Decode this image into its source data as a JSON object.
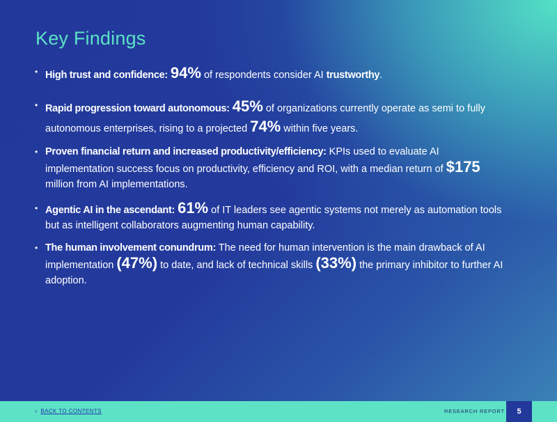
{
  "title": "Key Findings",
  "findings": [
    {
      "lead": "High trust and confidence:",
      "stat1": "94%",
      "text1": "of respondents consider AI",
      "strong": "trustworthy",
      "end": "."
    },
    {
      "lead": "Rapid progression toward autonomous:",
      "stat1": "45%",
      "text1": "of organizations currently operate as semi to fully autonomous enterprises, rising to a projected",
      "stat2": "74%",
      "text2": "within five years."
    },
    {
      "lead": "Proven financial return and increased productivity/efficiency:",
      "text1": "KPIs used to evaluate AI implementation success focus on productivity, efficiency and ROI, with a median return of",
      "stat1": "$175",
      "text2": "million from AI implementations."
    },
    {
      "lead": "Agentic AI in the ascendant:",
      "stat1": "61%",
      "text1": "of IT leaders see agentic systems not merely as automation tools but as intelligent collaborators augmenting human capability."
    },
    {
      "lead": "The human involvement conundrum:",
      "text1": "The need for human intervention is the main drawback of AI implementation",
      "stat1": "(47%)",
      "text2": "to date, and lack of technical skills",
      "stat2": "(33%)",
      "text3": "the primary inhibitor to further AI adoption."
    }
  ],
  "footer": {
    "back_label": "BACK TO CONTENTS",
    "report_label": "RESEARCH REPORT",
    "page_number": "5"
  }
}
